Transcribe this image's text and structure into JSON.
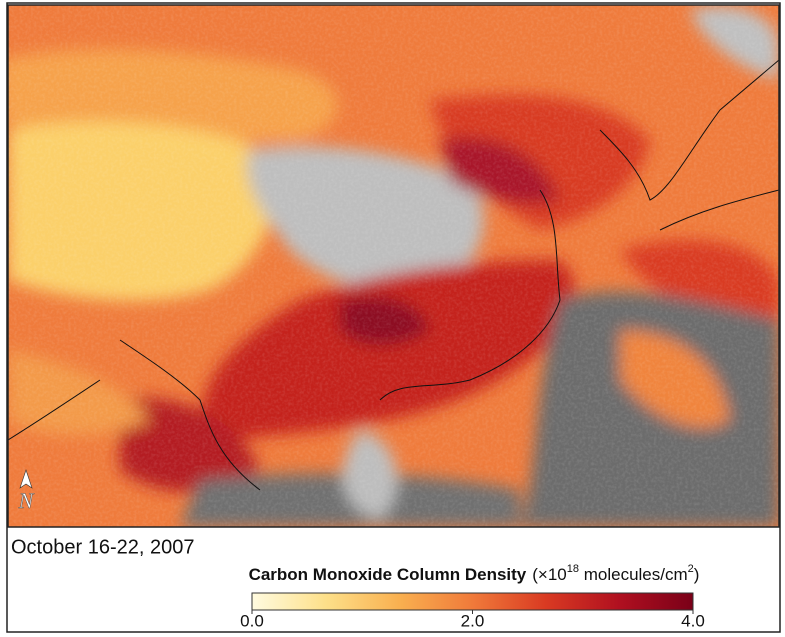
{
  "map": {
    "north_label": "N",
    "date": "October 16-22, 2007",
    "colorbar": {
      "title": "Carbon Monoxide Column Density",
      "unit": [
        "(×10",
        "18",
        " molecules/cm",
        "2",
        ")"
      ],
      "range": [
        0,
        4
      ],
      "colors": [
        "#fffbe0",
        "#fde08a",
        "#f9b050",
        "#f07a3a",
        "#d93a22",
        "#b01020",
        "#7a0018"
      ],
      "ticks": [
        {
          "value": 0,
          "label": "0.0"
        },
        {
          "value": 2,
          "label": "2.0"
        },
        {
          "value": 4,
          "label": "4.0"
        }
      ]
    }
  }
}
